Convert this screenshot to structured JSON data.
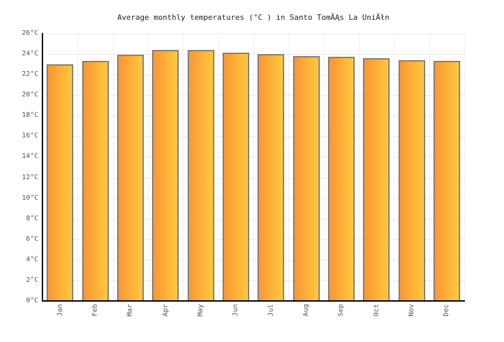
{
  "chart_data": {
    "type": "bar",
    "title": "Average monthly temperatures (°C ) in Santo TomĂĄs La UniĂłn",
    "categories": [
      "Jan",
      "Feb",
      "Mar",
      "Apr",
      "May",
      "Jun",
      "Jul",
      "Aug",
      "Sep",
      "Oct",
      "Nov",
      "Dec"
    ],
    "values": [
      23.1,
      23.4,
      24.0,
      24.5,
      24.5,
      24.2,
      24.1,
      23.9,
      23.8,
      23.7,
      23.5,
      23.4
    ],
    "unit": "°C",
    "xlabel": "",
    "ylabel": "",
    "ylim": [
      0,
      26
    ],
    "ytick_step": 2,
    "grid": true,
    "legend": false,
    "colors": {
      "bar_gradient_left": "#FA9634",
      "bar_gradient_right": "#FFC93E",
      "bar_border": "#808080",
      "axis": "#000000",
      "h_gridline": "#E8E8E8",
      "v_gridline": "#EFEFEF",
      "tick_text": "#555555",
      "title_text": "#222222",
      "background": "#FFFFFF"
    }
  }
}
